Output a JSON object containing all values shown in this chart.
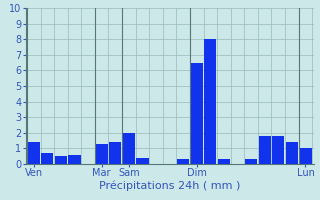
{
  "title": "",
  "xlabel": "Précipitations 24h ( mm )",
  "ylabel": "",
  "ylim": [
    0,
    10
  ],
  "yticks": [
    0,
    1,
    2,
    3,
    4,
    5,
    6,
    7,
    8,
    9,
    10
  ],
  "background_color": "#cce8e8",
  "bar_color": "#1133ee",
  "grid_color": "#99bbbb",
  "bar_values": [
    1.4,
    0.7,
    0.5,
    0.6,
    0.0,
    1.3,
    1.4,
    2.0,
    0.4,
    0.0,
    0.0,
    0.3,
    6.5,
    8.0,
    0.3,
    0.0,
    0.3,
    1.8,
    1.8,
    1.4,
    1.0
  ],
  "day_labels": [
    "Ven",
    "Mar",
    "Sam",
    "Dim",
    "Lun"
  ],
  "day_tick_positions": [
    0,
    5,
    7,
    12,
    20
  ],
  "xlabel_fontsize": 8,
  "tick_fontsize": 7,
  "xtick_label_color": "#3355bb",
  "ytick_label_color": "#3355bb"
}
